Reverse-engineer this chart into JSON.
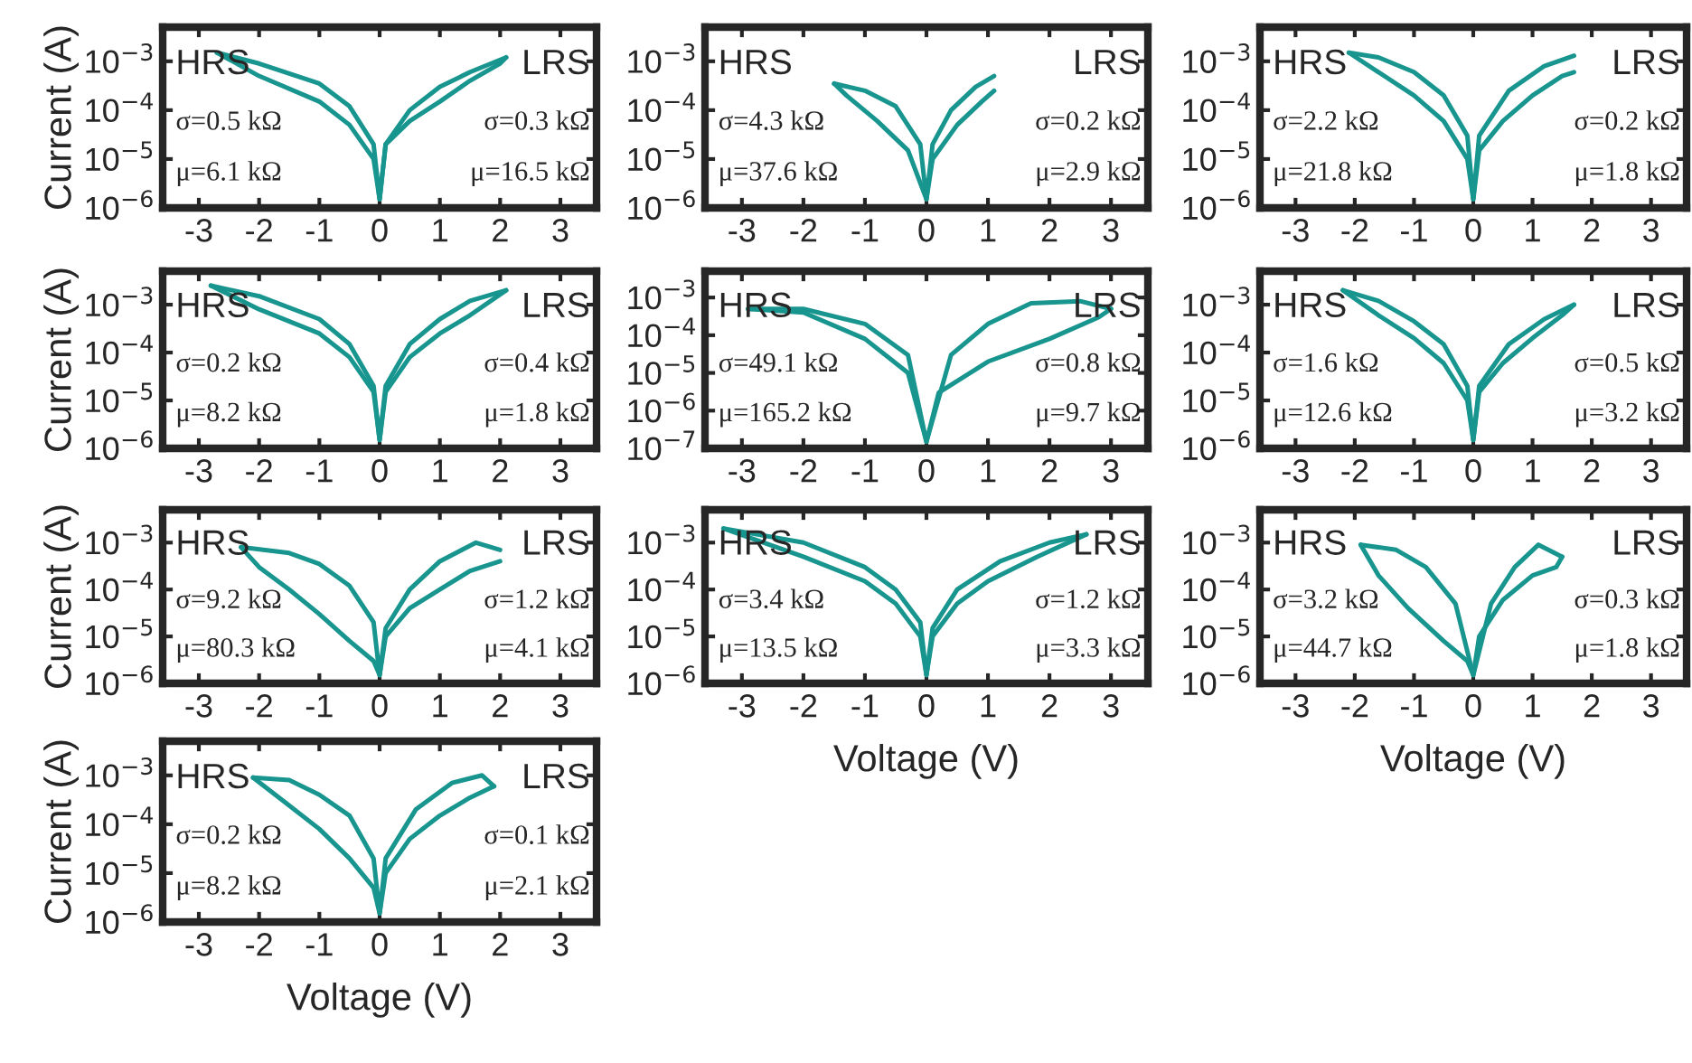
{
  "chart_data": [
    {
      "type": "line",
      "ylabel": "Current (A)",
      "log": "y",
      "xlim": [
        -3.6,
        3.6
      ],
      "ylim": [
        1e-06,
        0.005
      ],
      "xticks": [
        -3,
        -2,
        -1,
        0,
        1,
        2,
        3
      ],
      "yticks": [
        {
          "value": 1e-06,
          "label": "10$^{−6}$"
        },
        {
          "value": 1e-05,
          "label": "10$^{−5}$"
        },
        {
          "value": 0.0001,
          "label": "10$^{−4}$"
        },
        {
          "value": 0.001,
          "label": "10$^{−3}$"
        }
      ],
      "annotations": [
        "HRS",
        "σ=0.5 kΩ",
        "μ=6.1 kΩ",
        "LRS",
        "σ=0.3 kΩ",
        "μ=16.5 kΩ"
      ],
      "series": [
        {
          "color": "#17958e",
          "x": [
            -2.7,
            -2,
            -1,
            -0.5,
            -0.1,
            0,
            0.1,
            0.5,
            1,
            1.5,
            2.0,
            2.1
          ],
          "values": [
            0.0015,
            0.0005,
            0.00015,
            5e-05,
            1e-05,
            1.5e-06,
            2e-05,
            6e-05,
            0.00015,
            0.0004,
            0.0009,
            0.0012
          ]
        },
        {
          "color": "#17958e",
          "x": [
            2.1,
            1.5,
            1,
            0.5,
            0.1,
            0,
            -0.1,
            -0.5,
            -1,
            -2,
            -2.7
          ],
          "values": [
            0.0012,
            0.0006,
            0.0003,
            0.0001,
            2e-05,
            1.5e-06,
            2e-05,
            0.00012,
            0.00035,
            0.0009,
            0.0015
          ]
        }
      ]
    },
    {
      "type": "line",
      "log": "y",
      "xlim": [
        -3.6,
        3.6
      ],
      "ylim": [
        1e-06,
        0.005
      ],
      "xticks": [
        -3,
        -2,
        -1,
        0,
        1,
        2,
        3
      ],
      "yticks": [
        {
          "value": 1e-06,
          "label": "10$^{−6}$"
        },
        {
          "value": 1e-05,
          "label": "10$^{−5}$"
        },
        {
          "value": 0.0001,
          "label": "10$^{−4}$"
        },
        {
          "value": 0.001,
          "label": "10$^{−3}$"
        }
      ],
      "annotations": [
        "HRS",
        "σ=4.3 kΩ",
        "μ=37.6 kΩ",
        "LRS",
        "σ=0.2 kΩ",
        "μ=2.9 kΩ"
      ],
      "series": [
        {
          "color": "#17958e",
          "x": [
            -1.5,
            -1.3,
            -0.8,
            -0.3,
            0,
            0.1,
            0.5,
            0.9,
            1.1
          ],
          "values": [
            0.00035,
            0.0002,
            6e-05,
            1.5e-05,
            1.5e-06,
            1e-05,
            5e-05,
            0.00015,
            0.00025
          ]
        },
        {
          "color": "#17958e",
          "x": [
            1.1,
            0.8,
            0.4,
            0.1,
            0,
            -0.1,
            -0.5,
            -1.0,
            -1.5
          ],
          "values": [
            0.0005,
            0.0003,
            0.0001,
            2e-05,
            1.5e-06,
            2e-05,
            0.00012,
            0.00025,
            0.00035
          ]
        }
      ]
    },
    {
      "type": "line",
      "log": "y",
      "xlim": [
        -3.6,
        3.6
      ],
      "ylim": [
        1e-06,
        0.005
      ],
      "xticks": [
        -3,
        -2,
        -1,
        0,
        1,
        2,
        3
      ],
      "yticks": [
        {
          "value": 1e-06,
          "label": "10$^{−6}$"
        },
        {
          "value": 1e-05,
          "label": "10$^{−5}$"
        },
        {
          "value": 0.0001,
          "label": "10$^{−4}$"
        },
        {
          "value": 0.001,
          "label": "10$^{−3}$"
        }
      ],
      "annotations": [
        "HRS",
        "σ=2.2 kΩ",
        "μ=21.8 kΩ",
        "LRS",
        "σ=0.2 kΩ",
        "μ=1.8 kΩ"
      ],
      "series": [
        {
          "color": "#17958e",
          "x": [
            -2.1,
            -1.6,
            -1,
            -0.5,
            -0.1,
            0,
            0.1,
            0.5,
            1,
            1.5,
            1.7
          ],
          "values": [
            0.0015,
            0.0006,
            0.0002,
            6e-05,
            1e-05,
            1.5e-06,
            1.5e-05,
            6e-05,
            0.0002,
            0.0005,
            0.0006
          ]
        },
        {
          "color": "#17958e",
          "x": [
            1.7,
            1.2,
            0.6,
            0.1,
            0,
            -0.1,
            -0.5,
            -1,
            -1.6,
            -2.1
          ],
          "values": [
            0.0013,
            0.0008,
            0.00025,
            3e-05,
            1.5e-06,
            3e-05,
            0.0002,
            0.0006,
            0.0012,
            0.0015
          ]
        }
      ]
    },
    {
      "type": "line",
      "ylabel": "Current (A)",
      "log": "y",
      "xlim": [
        -3.6,
        3.6
      ],
      "ylim": [
        1e-06,
        0.005
      ],
      "xticks": [
        -3,
        -2,
        -1,
        0,
        1,
        2,
        3
      ],
      "yticks": [
        {
          "value": 1e-06,
          "label": "10$^{−6}$"
        },
        {
          "value": 1e-05,
          "label": "10$^{−5}$"
        },
        {
          "value": 0.0001,
          "label": "10$^{−4}$"
        },
        {
          "value": 0.001,
          "label": "10$^{−3}$"
        }
      ],
      "annotations": [
        "HRS",
        "σ=0.2 kΩ",
        "μ=8.2 kΩ",
        "LRS",
        "σ=0.4 kΩ",
        "μ=1.8 kΩ"
      ],
      "series": [
        {
          "color": "#17958e",
          "x": [
            -2.8,
            -2,
            -1,
            -0.5,
            -0.1,
            0,
            0.1,
            0.5,
            1,
            1.5,
            2.1
          ],
          "values": [
            0.0025,
            0.0008,
            0.00025,
            8e-05,
            1.5e-05,
            1.5e-06,
            1.5e-05,
            8e-05,
            0.00025,
            0.0006,
            0.002
          ]
        },
        {
          "color": "#17958e",
          "x": [
            2.1,
            1.5,
            1,
            0.5,
            0.1,
            0,
            -0.1,
            -0.5,
            -1,
            -2,
            -2.8
          ],
          "values": [
            0.002,
            0.0012,
            0.0005,
            0.00015,
            2e-05,
            1.5e-06,
            2e-05,
            0.00015,
            0.0005,
            0.0015,
            0.0025
          ]
        }
      ]
    },
    {
      "type": "line",
      "log": "y",
      "xlim": [
        -3.6,
        3.6
      ],
      "ylim": [
        1e-07,
        0.005
      ],
      "xticks": [
        -3,
        -2,
        -1,
        0,
        1,
        2,
        3
      ],
      "yticks": [
        {
          "value": 1e-07,
          "label": "10$^{−7}$"
        },
        {
          "value": 1e-06,
          "label": "10$^{−6}$"
        },
        {
          "value": 1e-05,
          "label": "10$^{−5}$"
        },
        {
          "value": 0.0001,
          "label": "10$^{−4}$"
        },
        {
          "value": 0.001,
          "label": "10$^{−3}$"
        }
      ],
      "annotations": [
        "HRS",
        "σ=49.1 kΩ",
        "μ=165.2 kΩ",
        "LRS",
        "σ=0.8 kΩ",
        "μ=9.7 kΩ"
      ],
      "series": [
        {
          "color": "#17958e",
          "x": [
            -2.9,
            -2,
            -1,
            -0.3,
            0,
            0.2,
            1,
            2,
            2.8,
            3.0
          ],
          "values": [
            0.0005,
            0.0004,
            8e-05,
            1e-05,
            1.5e-07,
            3e-06,
            2e-05,
            8e-05,
            0.0003,
            0.0005
          ]
        },
        {
          "color": "#17958e",
          "x": [
            3.0,
            2.5,
            1.7,
            1.0,
            0.4,
            0,
            -0.3,
            -1,
            -2,
            -2.9
          ],
          "values": [
            0.0005,
            0.0008,
            0.0007,
            0.0002,
            3e-05,
            1.5e-07,
            3e-05,
            0.0002,
            0.0005,
            0.0005
          ]
        }
      ]
    },
    {
      "type": "line",
      "log": "y",
      "xlim": [
        -3.6,
        3.6
      ],
      "ylim": [
        1e-06,
        0.005
      ],
      "xticks": [
        -3,
        -2,
        -1,
        0,
        1,
        2,
        3
      ],
      "yticks": [
        {
          "value": 1e-06,
          "label": "10$^{−6}$"
        },
        {
          "value": 1e-05,
          "label": "10$^{−5}$"
        },
        {
          "value": 0.0001,
          "label": "10$^{−4}$"
        },
        {
          "value": 0.001,
          "label": "10$^{−3}$"
        }
      ],
      "annotations": [
        "HRS",
        "σ=1.6 kΩ",
        "μ=12.6 kΩ",
        "LRS",
        "σ=0.5 kΩ",
        "μ=3.2 kΩ"
      ],
      "series": [
        {
          "color": "#17958e",
          "x": [
            -2.2,
            -1.6,
            -1,
            -0.5,
            -0.1,
            0,
            0.1,
            0.5,
            1,
            1.5,
            1.7
          ],
          "values": [
            0.002,
            0.0006,
            0.0002,
            6e-05,
            1e-05,
            1.5e-06,
            1.5e-05,
            6e-05,
            0.0002,
            0.0006,
            0.001
          ]
        },
        {
          "color": "#17958e",
          "x": [
            1.7,
            1.2,
            0.6,
            0.1,
            0,
            -0.1,
            -0.5,
            -1,
            -1.6,
            -2.2
          ],
          "values": [
            0.001,
            0.0005,
            0.00015,
            2e-05,
            1.5e-06,
            2e-05,
            0.00015,
            0.00045,
            0.0012,
            0.002
          ]
        }
      ]
    },
    {
      "type": "line",
      "ylabel": "Current (A)",
      "log": "y",
      "xlim": [
        -3.6,
        3.6
      ],
      "ylim": [
        1e-06,
        0.005
      ],
      "xticks": [
        -3,
        -2,
        -1,
        0,
        1,
        2,
        3
      ],
      "yticks": [
        {
          "value": 1e-06,
          "label": "10$^{−6}$"
        },
        {
          "value": 1e-05,
          "label": "10$^{−5}$"
        },
        {
          "value": 0.0001,
          "label": "10$^{−4}$"
        },
        {
          "value": 0.001,
          "label": "10$^{−3}$"
        }
      ],
      "annotations": [
        "HRS",
        "σ=9.2 kΩ",
        "μ=80.3 kΩ",
        "LRS",
        "σ=1.2 kΩ",
        "μ=4.1 kΩ"
      ],
      "series": [
        {
          "color": "#17958e",
          "x": [
            -2.3,
            -2.0,
            -1.5,
            -1,
            -0.5,
            -0.1,
            0,
            0.1,
            0.5,
            1,
            1.5,
            2.0
          ],
          "values": [
            0.0008,
            0.0003,
            0.0001,
            3e-05,
            8e-06,
            3e-06,
            1.5e-06,
            1e-05,
            4e-05,
            0.0001,
            0.00025,
            0.0004
          ]
        },
        {
          "color": "#17958e",
          "x": [
            2.0,
            1.6,
            1.0,
            0.5,
            0.1,
            0,
            -0.1,
            -0.5,
            -1,
            -1.5,
            -2.3
          ],
          "values": [
            0.0007,
            0.001,
            0.0004,
            0.0001,
            1.5e-05,
            1.5e-06,
            2e-05,
            0.00012,
            0.00035,
            0.0006,
            0.0008
          ]
        }
      ]
    },
    {
      "type": "line",
      "xlabel": "Voltage (V)",
      "log": "y",
      "xlim": [
        -3.6,
        3.6
      ],
      "ylim": [
        1e-06,
        0.005
      ],
      "xticks": [
        -3,
        -2,
        -1,
        0,
        1,
        2,
        3
      ],
      "yticks": [
        {
          "value": 1e-06,
          "label": "10$^{−6}$"
        },
        {
          "value": 1e-05,
          "label": "10$^{−5}$"
        },
        {
          "value": 0.0001,
          "label": "10$^{−4}$"
        },
        {
          "value": 0.001,
          "label": "10$^{−3}$"
        }
      ],
      "annotations": [
        "HRS",
        "σ=3.4 kΩ",
        "μ=13.5 kΩ",
        "LRS",
        "σ=1.2 kΩ",
        "μ=3.3 kΩ"
      ],
      "series": [
        {
          "color": "#17958e",
          "x": [
            -3.3,
            -2,
            -1,
            -0.5,
            -0.1,
            0,
            0.1,
            0.5,
            1,
            1.8,
            2.6
          ],
          "values": [
            0.002,
            0.0005,
            0.00015,
            5e-05,
            1e-05,
            1.5e-06,
            1e-05,
            5e-05,
            0.00015,
            0.0005,
            0.0015
          ]
        },
        {
          "color": "#17958e",
          "x": [
            2.6,
            2.0,
            1.2,
            0.5,
            0.1,
            0,
            -0.1,
            -0.5,
            -1,
            -2,
            -3.3
          ],
          "values": [
            0.0015,
            0.001,
            0.0004,
            0.0001,
            1.5e-05,
            1.5e-06,
            2e-05,
            0.0001,
            0.0003,
            0.001,
            0.002
          ]
        }
      ]
    },
    {
      "type": "line",
      "xlabel": "Voltage (V)",
      "log": "y",
      "xlim": [
        -3.6,
        3.6
      ],
      "ylim": [
        1e-06,
        0.005
      ],
      "xticks": [
        -3,
        -2,
        -1,
        0,
        1,
        2,
        3
      ],
      "yticks": [
        {
          "value": 1e-06,
          "label": "10$^{−6}$"
        },
        {
          "value": 1e-05,
          "label": "10$^{−5}$"
        },
        {
          "value": 0.0001,
          "label": "10$^{−4}$"
        },
        {
          "value": 0.001,
          "label": "10$^{−3}$"
        }
      ],
      "annotations": [
        "HRS",
        "σ=3.2 kΩ",
        "μ=44.7 kΩ",
        "LRS",
        "σ=0.3 kΩ",
        "μ=1.8 kΩ"
      ],
      "series": [
        {
          "color": "#17958e",
          "x": [
            -1.9,
            -1.6,
            -1.1,
            -0.5,
            -0.1,
            0,
            0.1,
            0.5,
            1.0,
            1.4,
            1.5
          ],
          "values": [
            0.0009,
            0.0002,
            4e-05,
            8e-06,
            3e-06,
            1.5e-06,
            1e-05,
            6e-05,
            0.0002,
            0.0003,
            0.0005
          ]
        },
        {
          "color": "#17958e",
          "x": [
            1.5,
            1.1,
            0.7,
            0.3,
            0,
            -0.3,
            -0.8,
            -1.3,
            -1.9
          ],
          "values": [
            0.0005,
            0.0009,
            0.0003,
            5e-05,
            1.5e-06,
            5e-05,
            0.0003,
            0.0007,
            0.0009
          ]
        }
      ]
    },
    {
      "type": "line",
      "xlabel": "Voltage (V)",
      "ylabel": "Current (A)",
      "log": "y",
      "xlim": [
        -3.6,
        3.6
      ],
      "ylim": [
        1e-06,
        0.005
      ],
      "xticks": [
        -3,
        -2,
        -1,
        0,
        1,
        2,
        3
      ],
      "yticks": [
        {
          "value": 1e-06,
          "label": "10$^{−6}$"
        },
        {
          "value": 1e-05,
          "label": "10$^{−5}$"
        },
        {
          "value": 0.0001,
          "label": "10$^{−4}$"
        },
        {
          "value": 0.001,
          "label": "10$^{−3}$"
        }
      ],
      "annotations": [
        "HRS",
        "σ=0.2 kΩ",
        "μ=8.2 kΩ",
        "LRS",
        "σ=0.1 kΩ",
        "μ=2.1 kΩ"
      ],
      "series": [
        {
          "color": "#17958e",
          "x": [
            -2.1,
            -1.6,
            -1,
            -0.5,
            -0.1,
            0,
            0.1,
            0.5,
            1,
            1.5,
            1.9
          ],
          "values": [
            0.0009,
            0.0003,
            8e-05,
            2e-05,
            5e-06,
            1.5e-06,
            1e-05,
            5e-05,
            0.00015,
            0.00035,
            0.0006
          ]
        },
        {
          "color": "#17958e",
          "x": [
            1.9,
            1.7,
            1.2,
            0.6,
            0.1,
            0,
            -0.1,
            -0.5,
            -1,
            -1.5,
            -2.1
          ],
          "values": [
            0.0006,
            0.001,
            0.0007,
            0.0002,
            2e-05,
            1.5e-06,
            2e-05,
            0.00015,
            0.0004,
            0.0008,
            0.0009
          ]
        }
      ]
    }
  ]
}
